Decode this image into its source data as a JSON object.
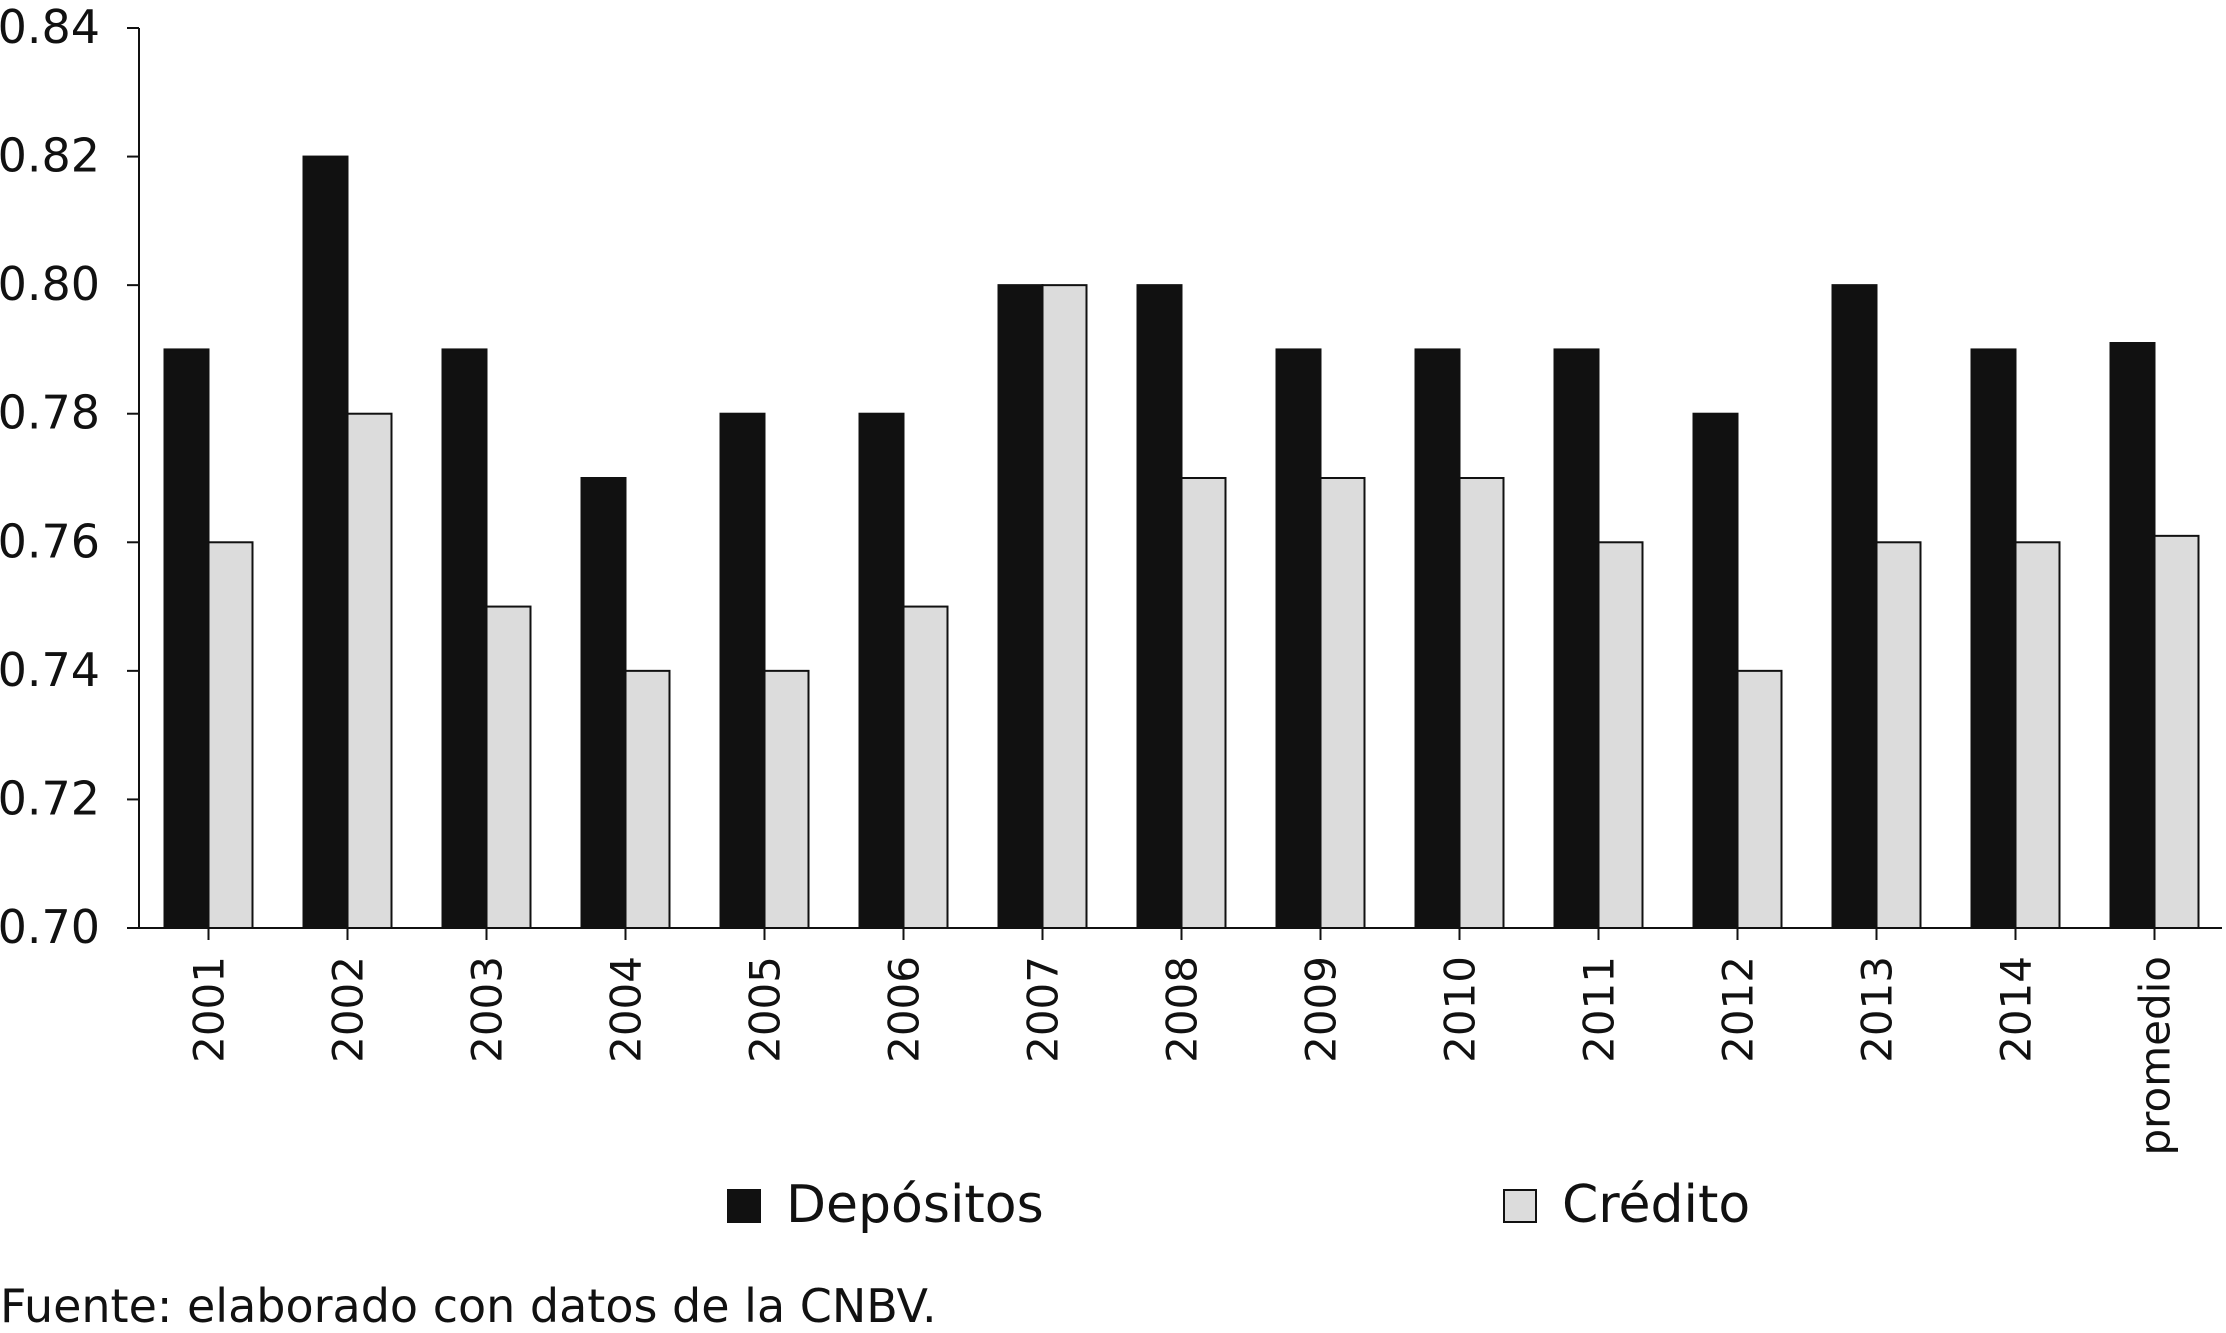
{
  "chart_data": {
    "type": "bar",
    "categories": [
      "2001",
      "2002",
      "2003",
      "2004",
      "2005",
      "2006",
      "2007",
      "2008",
      "2009",
      "2010",
      "2011",
      "2012",
      "2013",
      "2014",
      "promedio"
    ],
    "series": [
      {
        "name": "Depósitos",
        "color": "#111111",
        "values": [
          0.79,
          0.82,
          0.79,
          0.77,
          0.78,
          0.78,
          0.8,
          0.8,
          0.79,
          0.79,
          0.79,
          0.78,
          0.8,
          0.79,
          0.791
        ]
      },
      {
        "name": "Crédito",
        "color": "#dcdcdc",
        "values": [
          0.76,
          0.78,
          0.75,
          0.74,
          0.74,
          0.75,
          0.8,
          0.77,
          0.77,
          0.77,
          0.76,
          0.74,
          0.76,
          0.76,
          0.761
        ]
      }
    ],
    "ylim": [
      0.7,
      0.84
    ],
    "yticks": [
      "0.70",
      "0.72",
      "0.74",
      "0.76",
      "0.78",
      "0.80",
      "0.82",
      "0.84"
    ],
    "title": "",
    "xlabel": "",
    "ylabel": "",
    "grid": false,
    "legend_position": "bottom"
  },
  "source": "Fuente: elaborado con datos de la CNBV."
}
